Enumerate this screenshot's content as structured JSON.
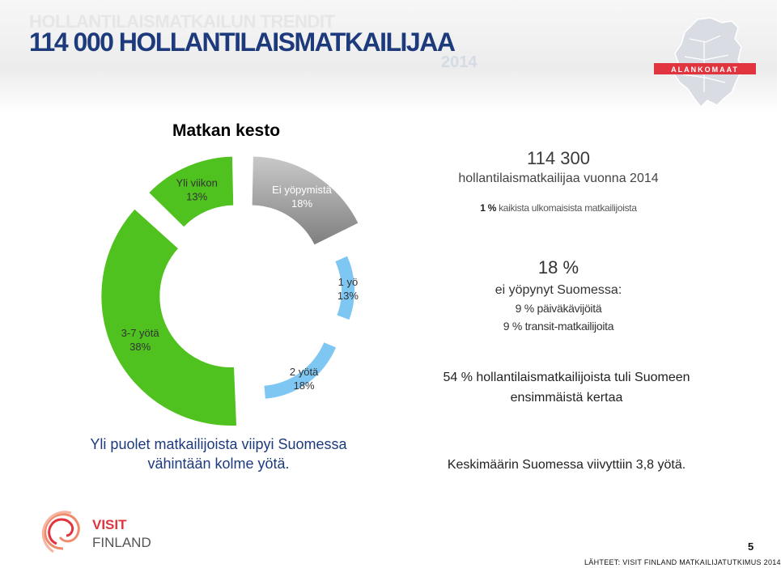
{
  "header": {
    "ghost_title": "HOLLANTILAISMATKAILUN TRENDIT",
    "title": "114 000 HOLLANTILAISMATKAILIJAA",
    "year": "2014",
    "country_logo_text": "ALANKOMAAT"
  },
  "chart_data": {
    "type": "pie",
    "title": "Matkan kesto",
    "categories": [
      "Ei yöpymistä",
      "1 yö",
      "2 yötä",
      "3-7 yötä",
      "Yli viikon"
    ],
    "values": [
      18,
      13,
      18,
      38,
      13
    ],
    "labels": [
      "18%",
      "13%",
      "18%",
      "38%",
      "13%"
    ],
    "colors": [
      "#7f7f7f",
      "#7ec7f3",
      "#7ec7f3",
      "#4fc21f",
      "#4fc21f"
    ]
  },
  "stats": {
    "total": "114 300",
    "total_desc": "hollantilaismatkailijaa vuonna 2014",
    "share_pct": "1 %",
    "share_desc": "kaikista ulkomaisista matkailijoista",
    "nostay_pct": "18 %",
    "nostay_desc": "ei yöpynyt Suomessa:",
    "nostay_day": "9 % päiväkävijöitä",
    "nostay_transit": "9 % transit-matkailijoita",
    "first_time_1": "54 % hollantilaismatkailijoista  tuli Suomeen",
    "first_time_2": "ensimmäistä  kertaa",
    "avg_nights": "Keskimäärin  Suomessa  viivyttiin 3,8 yötä."
  },
  "summary": {
    "line1": "Yli puolet matkailijoista viipyi Suomessa",
    "line2": "vähintään kolme yötä."
  },
  "footer": {
    "logo_word1": "VISIT",
    "logo_word2": "FINLAND",
    "page_number": "5",
    "source": "LÄHTEET: VISIT FINLAND MATKAILIJATUTKIMUS  2014"
  },
  "colors": {
    "title_blue": "#1d3b7c",
    "green": "#4fc21f",
    "light_blue": "#7ec7f3",
    "grey": "#7f7f7f",
    "logo_red": "#e0353f"
  }
}
